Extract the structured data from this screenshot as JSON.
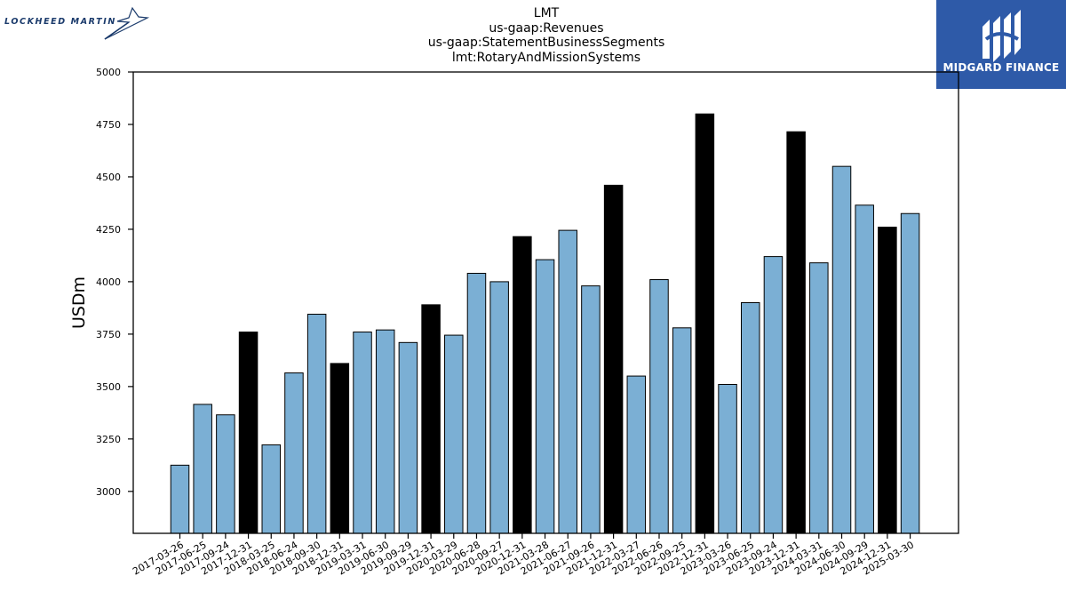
{
  "logos": {
    "left_text": "LOCKHEED MARTIN",
    "right_text": "MIDGARD FINANCE",
    "right_bg": "#2e5aa8"
  },
  "title": {
    "line1": "LMT",
    "line2": "us-gaap:Revenues",
    "line3": "us-gaap:StatementBusinessSegments",
    "line4": "lmt:RotaryAndMissionSystems"
  },
  "colors": {
    "quarter": "#7bafd4",
    "annual": "#000000"
  },
  "chart_data": {
    "type": "bar",
    "ylabel": "USDm",
    "ylim": [
      2800,
      5000
    ],
    "yticks": [
      3000,
      3250,
      3500,
      3750,
      4000,
      4250,
      4500,
      4750,
      5000
    ],
    "categories": [
      "2017-03-26",
      "2017-06-25",
      "2017-09-24",
      "2017-12-31",
      "2018-03-25",
      "2018-06-24",
      "2018-09-30",
      "2018-12-31",
      "2019-03-31",
      "2019-06-30",
      "2019-09-29",
      "2019-12-31",
      "2020-03-29",
      "2020-06-28",
      "2020-09-27",
      "2020-12-31",
      "2021-03-28",
      "2021-06-27",
      "2021-09-26",
      "2021-12-31",
      "2022-03-27",
      "2022-06-26",
      "2022-09-25",
      "2022-12-31",
      "2023-03-26",
      "2023-06-25",
      "2023-09-24",
      "2023-12-31",
      "2024-03-31",
      "2024-06-30",
      "2024-09-29",
      "2024-12-31",
      "2025-03-30"
    ],
    "values": [
      3125,
      3415,
      3365,
      3760,
      3222,
      3565,
      3845,
      3610,
      3760,
      3770,
      3710,
      3890,
      3745,
      4040,
      4000,
      4215,
      4105,
      4245,
      3980,
      4460,
      3550,
      4010,
      3780,
      4800,
      3510,
      3900,
      4120,
      4715,
      4090,
      4550,
      4365,
      4260,
      4325
    ],
    "annual": [
      false,
      false,
      false,
      true,
      false,
      false,
      false,
      true,
      false,
      false,
      false,
      true,
      false,
      false,
      false,
      true,
      false,
      false,
      false,
      true,
      false,
      false,
      false,
      true,
      false,
      false,
      false,
      true,
      false,
      false,
      false,
      true,
      false
    ]
  }
}
